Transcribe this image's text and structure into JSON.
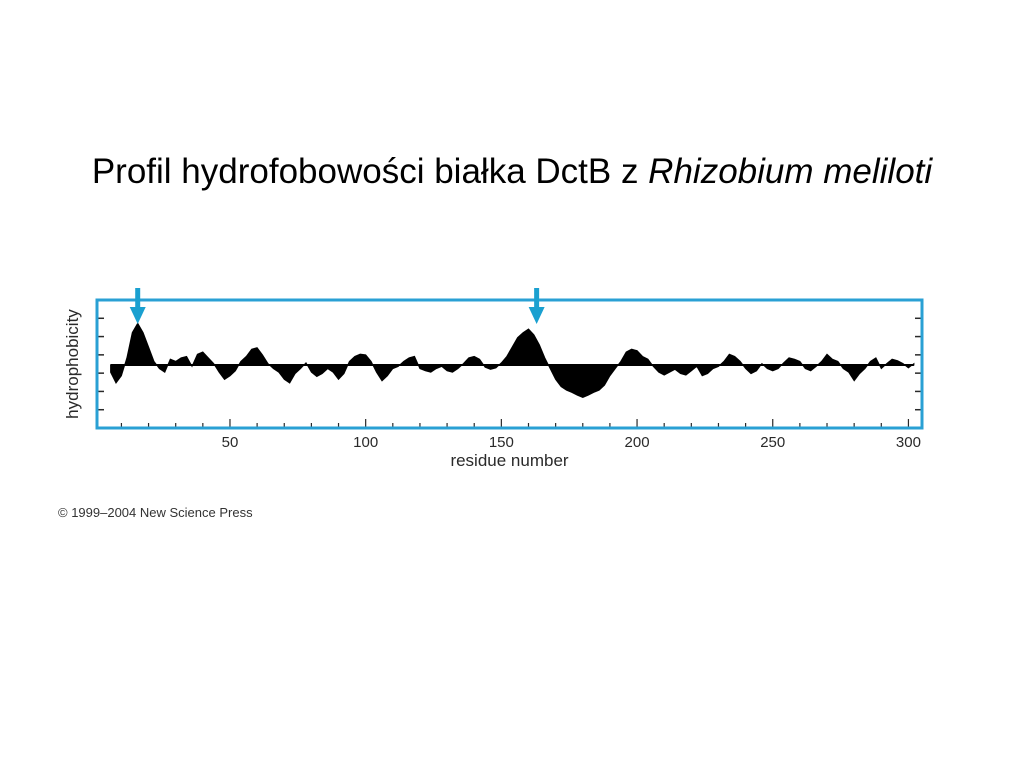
{
  "slide": {
    "title_plain": "Profil hydrofobowości białka DctB z ",
    "title_italic": "Rhizobium meliloti"
  },
  "copyright": "© 1999–2004 New Science Press",
  "colors": {
    "frame": "#2aa0d4",
    "arrow": "#1aa0d0",
    "profile": "#000000",
    "text": "#2a2a2a"
  },
  "chart_data": {
    "type": "area",
    "xlabel": "residue number",
    "ylabel": "hydrophobicity",
    "xlim": [
      1,
      305
    ],
    "ylim": [
      -1,
      1
    ],
    "xticks": [
      50,
      100,
      150,
      200,
      250,
      300
    ],
    "grid": false,
    "markers": [
      {
        "type": "arrow",
        "x": 16
      },
      {
        "type": "arrow",
        "x": 163
      }
    ],
    "series": [
      {
        "x": [
          6,
          8,
          10,
          12,
          14,
          16,
          18,
          20,
          22,
          24,
          26,
          28,
          30,
          32,
          34,
          36,
          38,
          40,
          42,
          44,
          46,
          48,
          50,
          52,
          54,
          56,
          58,
          60,
          62,
          64,
          66,
          68,
          70,
          72,
          74,
          76,
          78,
          80,
          82,
          84,
          86,
          88,
          90,
          92,
          94,
          96,
          98,
          100,
          102,
          104,
          106,
          108,
          110,
          112,
          114,
          116,
          118,
          120,
          122,
          124,
          126,
          128,
          130,
          132,
          134,
          136,
          138,
          140,
          142,
          144,
          146,
          148,
          150,
          152,
          154,
          156,
          158,
          160,
          162,
          164,
          166,
          168,
          170,
          172,
          174,
          176,
          178,
          180,
          182,
          184,
          186,
          188,
          190,
          192,
          194,
          196,
          198,
          200,
          202,
          204,
          206,
          208,
          210,
          212,
          214,
          216,
          218,
          220,
          222,
          224,
          226,
          228,
          230,
          232,
          234,
          236,
          238,
          240,
          242,
          244,
          246,
          248,
          250,
          252,
          254,
          256,
          258,
          260,
          262,
          264,
          266,
          268,
          270,
          272,
          274,
          276,
          278,
          280,
          282,
          284,
          286,
          288,
          290,
          292,
          294,
          296,
          298,
          300,
          302
        ],
        "values": [
          -0.1,
          -0.25,
          -0.15,
          0.1,
          0.45,
          0.58,
          0.45,
          0.25,
          0.05,
          -0.05,
          -0.1,
          0.08,
          0.05,
          0.1,
          0.12,
          -0.02,
          0.15,
          0.18,
          0.1,
          0.02,
          -0.1,
          -0.2,
          -0.15,
          -0.08,
          0.05,
          0.12,
          0.22,
          0.24,
          0.14,
          0.02,
          -0.05,
          -0.1,
          -0.2,
          -0.25,
          -0.12,
          -0.05,
          0.03,
          -0.1,
          -0.16,
          -0.12,
          -0.05,
          -0.1,
          -0.2,
          -0.12,
          0.05,
          0.12,
          0.15,
          0.14,
          0.05,
          -0.1,
          -0.22,
          -0.15,
          -0.05,
          -0.02,
          0.05,
          0.1,
          0.12,
          -0.05,
          -0.08,
          -0.1,
          -0.05,
          -0.02,
          -0.08,
          -0.1,
          -0.05,
          0.02,
          0.1,
          0.12,
          0.08,
          -0.03,
          -0.06,
          -0.04,
          0.03,
          0.12,
          0.25,
          0.38,
          0.45,
          0.5,
          0.42,
          0.28,
          0.1,
          -0.05,
          -0.2,
          -0.3,
          -0.35,
          -0.38,
          -0.42,
          -0.45,
          -0.42,
          -0.38,
          -0.35,
          -0.28,
          -0.15,
          -0.05,
          0.05,
          0.18,
          0.22,
          0.2,
          0.12,
          0.08,
          -0.02,
          -0.1,
          -0.14,
          -0.1,
          -0.06,
          -0.12,
          -0.14,
          -0.08,
          -0.02,
          -0.15,
          -0.12,
          -0.05,
          -0.02,
          0.05,
          0.15,
          0.12,
          0.05,
          -0.05,
          -0.12,
          -0.08,
          0.02,
          -0.05,
          -0.08,
          -0.05,
          0.03,
          0.1,
          0.08,
          0.05,
          -0.05,
          -0.08,
          -0.02,
          0.05,
          0.15,
          0.08,
          0.05,
          -0.05,
          -0.1,
          -0.22,
          -0.12,
          -0.05,
          0.05,
          0.1,
          -0.05,
          0.02,
          0.08,
          0.06,
          0.02,
          -0.04,
          0.02
        ]
      }
    ]
  }
}
